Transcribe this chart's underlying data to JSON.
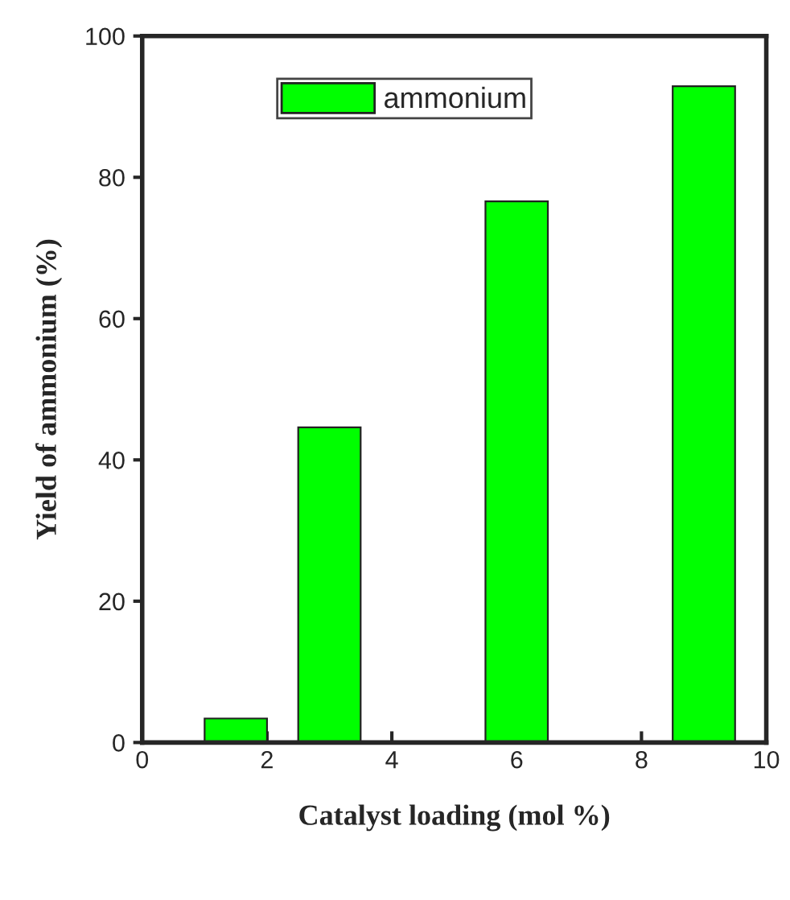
{
  "chart_data": {
    "type": "bar",
    "xlabel": "Catalyst loading (mol %)",
    "ylabel": "Yield of ammonium (%)",
    "x": [
      1.5,
      3,
      6,
      9
    ],
    "series": [
      {
        "name": "ammonium",
        "color": "#00ff00",
        "values": [
          3.4,
          44.6,
          76.6,
          92.9
        ]
      }
    ],
    "xlim": [
      0,
      10
    ],
    "xticks": [
      0,
      2,
      4,
      6,
      8,
      10
    ],
    "ylim": [
      0,
      100
    ],
    "yticks": [
      0,
      20,
      40,
      60,
      80,
      100
    ],
    "legend": "top",
    "grid": false
  }
}
